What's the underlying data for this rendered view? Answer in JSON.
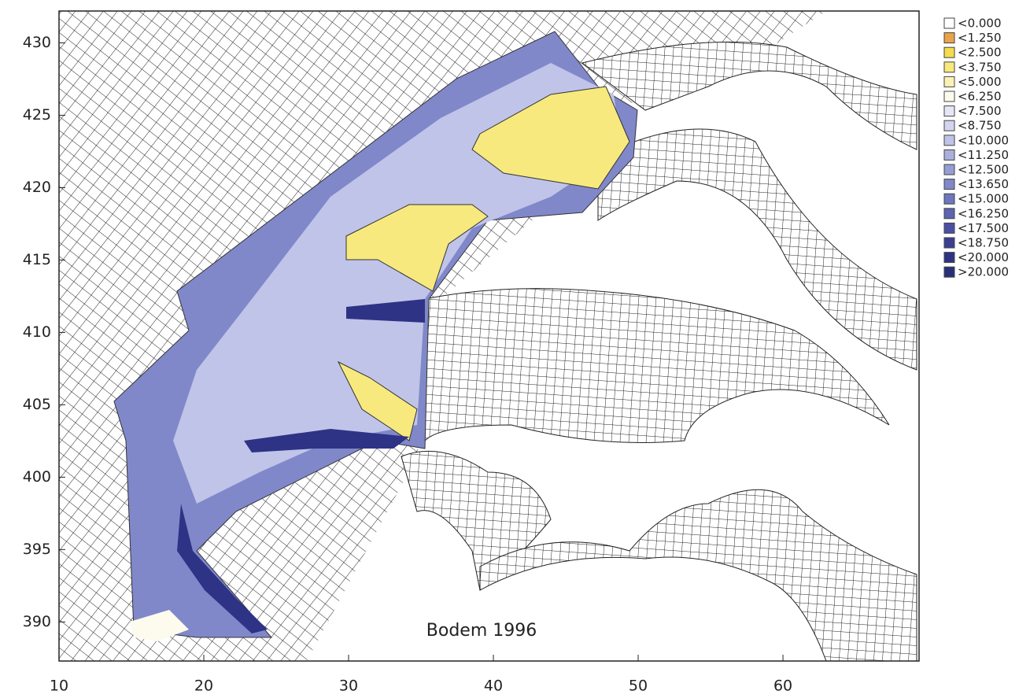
{
  "map": {
    "annotation": "Bodem 1996",
    "xlim": [
      10,
      69.4
    ],
    "ylim": [
      387.3,
      432.2
    ],
    "xticks": [
      10,
      20,
      30,
      40,
      50,
      60
    ],
    "yticks": [
      390,
      395,
      400,
      405,
      410,
      415,
      420,
      425,
      430
    ],
    "legend": [
      {
        "label": "<0.000",
        "color": "#ffffff"
      },
      {
        "label": "<1.250",
        "color": "#e9a44a"
      },
      {
        "label": "<2.500",
        "color": "#f4dc4c"
      },
      {
        "label": "<3.750",
        "color": "#f7e97e"
      },
      {
        "label": "<5.000",
        "color": "#faf2b4"
      },
      {
        "label": "<6.250",
        "color": "#fdfbee"
      },
      {
        "label": "<7.500",
        "color": "#e6e7f6"
      },
      {
        "label": "<8.750",
        "color": "#d3d5ef"
      },
      {
        "label": "<10.000",
        "color": "#bfc3e8"
      },
      {
        "label": "<11.250",
        "color": "#aab0de"
      },
      {
        "label": "<12.500",
        "color": "#959dd5"
      },
      {
        "label": "<13.650",
        "color": "#8088ca"
      },
      {
        "label": "<15.000",
        "color": "#6e76be"
      },
      {
        "label": "<16.250",
        "color": "#5c63b0"
      },
      {
        "label": "<17.500",
        "color": "#4a50a2"
      },
      {
        "label": "<18.750",
        "color": "#3a3f94"
      },
      {
        "label": "<20.000",
        "color": "#2e3385"
      },
      {
        "label": ">20.000",
        "color": "#283078"
      }
    ]
  }
}
